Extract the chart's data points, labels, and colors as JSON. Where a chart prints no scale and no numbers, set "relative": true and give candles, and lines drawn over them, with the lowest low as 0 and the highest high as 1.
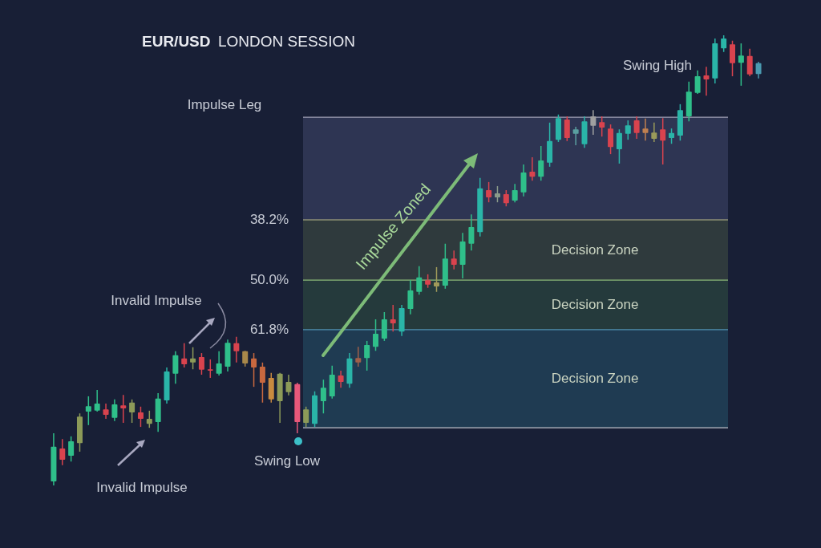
{
  "chart_data": {
    "type": "candlestick",
    "title": "EUR/USD",
    "subtitle": "LONDON SESSION",
    "relative": true,
    "categories": [
      null,
      null,
      null,
      null,
      null,
      null,
      null,
      null,
      null,
      null,
      null,
      null,
      null,
      null,
      null,
      null,
      null,
      null,
      null,
      null,
      null,
      null,
      null,
      null,
      null,
      null,
      null,
      null,
      null,
      null,
      null,
      null,
      null,
      null,
      null,
      null,
      null,
      null,
      null,
      null,
      null,
      null,
      null,
      null,
      null,
      null,
      null,
      null,
      null,
      null,
      null,
      null,
      null,
      null,
      null,
      null,
      null,
      null,
      null,
      null,
      null,
      null,
      null,
      null,
      null,
      null,
      null,
      null,
      null,
      null,
      null,
      null,
      null,
      null,
      null,
      null,
      null,
      null,
      null,
      null,
      null,
      null
    ],
    "ohlc": [
      [
        0.009,
        0.116,
        0,
        0.086
      ],
      [
        0.082,
        0.103,
        0.045,
        0.057
      ],
      [
        0.066,
        0.109,
        0.053,
        0.098
      ],
      [
        0.094,
        0.16,
        0.075,
        0.153
      ],
      [
        0.164,
        0.198,
        0.134,
        0.176
      ],
      [
        0.166,
        0.212,
        0.164,
        0.182
      ],
      [
        0.169,
        0.182,
        0.148,
        0.157
      ],
      [
        0.15,
        0.191,
        0.143,
        0.18
      ],
      [
        0.178,
        0.201,
        0.139,
        0.171
      ],
      [
        0.162,
        0.191,
        0.139,
        0.184
      ],
      [
        0.162,
        0.175,
        0.13,
        0.148
      ],
      [
        0.137,
        0.166,
        0.128,
        0.148
      ],
      [
        0.141,
        0.205,
        0.119,
        0.193
      ],
      [
        0.189,
        0.262,
        0.182,
        0.253
      ],
      [
        0.248,
        0.298,
        0.226,
        0.289
      ],
      [
        0.282,
        0.316,
        0.262,
        0.269
      ],
      [
        0.273,
        0.307,
        0.258,
        0.282
      ],
      [
        0.285,
        0.294,
        0.246,
        0.257
      ],
      [
        0.258,
        0.28,
        0.239,
        0.255
      ],
      [
        0.248,
        0.298,
        0.244,
        0.271
      ],
      [
        0.264,
        0.324,
        0.253,
        0.317
      ],
      [
        0.316,
        0.33,
        0.273,
        0.298
      ],
      [
        0.298,
        0.299,
        0.264,
        0.271
      ],
      [
        0.282,
        0.294,
        0.219,
        0.262
      ],
      [
        0.264,
        0.273,
        0.184,
        0.228
      ],
      [
        0.239,
        0.25,
        0.184,
        0.191
      ],
      [
        0.187,
        0.25,
        0.139,
        0.248
      ],
      [
        0.207,
        0.246,
        0.2,
        0.23
      ],
      [
        0.225,
        0.228,
        0.116,
        0.141
      ],
      [
        0.139,
        0.175,
        0.13,
        0.169
      ],
      [
        0.137,
        0.209,
        0.13,
        0.2
      ],
      [
        0.187,
        0.235,
        0.16,
        0.217
      ],
      [
        0.198,
        0.266,
        0.193,
        0.246
      ],
      [
        0.244,
        0.255,
        0.217,
        0.23
      ],
      [
        0.226,
        0.294,
        0.217,
        0.282
      ],
      [
        0.283,
        0.308,
        0.264,
        0.273
      ],
      [
        0.283,
        0.321,
        0.255,
        0.312
      ],
      [
        0.308,
        0.369,
        0.299,
        0.337
      ],
      [
        0.326,
        0.385,
        0.321,
        0.369
      ],
      [
        0.369,
        0.401,
        0.342,
        0.36
      ],
      [
        0.342,
        0.401,
        0.332,
        0.394
      ],
      [
        0.392,
        0.456,
        0.38,
        0.433
      ],
      [
        0.43,
        0.487,
        0.424,
        0.462
      ],
      [
        0.456,
        0.469,
        0.439,
        0.446
      ],
      [
        0.442,
        0.485,
        0.43,
        0.451
      ],
      [
        0.444,
        0.537,
        0.437,
        0.504
      ],
      [
        0.504,
        0.522,
        0.48,
        0.49
      ],
      [
        0.49,
        0.561,
        0.46,
        0.542
      ],
      [
        0.537,
        0.602,
        0.522,
        0.574
      ],
      [
        0.563,
        0.683,
        0.553,
        0.66
      ],
      [
        0.656,
        0.674,
        0.629,
        0.64
      ],
      [
        0.64,
        0.665,
        0.629,
        0.649
      ],
      [
        0.647,
        0.656,
        0.62,
        0.627
      ],
      [
        0.633,
        0.67,
        0.629,
        0.656
      ],
      [
        0.651,
        0.713,
        0.642,
        0.695
      ],
      [
        0.697,
        0.729,
        0.677,
        0.686
      ],
      [
        0.686,
        0.754,
        0.677,
        0.722
      ],
      [
        0.717,
        0.806,
        0.708,
        0.765
      ],
      [
        0.768,
        0.824,
        0.763,
        0.816
      ],
      [
        0.813,
        0.82,
        0.765,
        0.772
      ],
      [
        0.781,
        0.797,
        0.756,
        0.791
      ],
      [
        0.758,
        0.82,
        0.75,
        0.809
      ],
      [
        0.82,
        0.834,
        0.779,
        0.799
      ],
      [
        0.807,
        0.82,
        0.775,
        0.795
      ],
      [
        0.793,
        0.802,
        0.736,
        0.752
      ],
      [
        0.747,
        0.791,
        0.715,
        0.783
      ],
      [
        0.781,
        0.811,
        0.768,
        0.8
      ],
      [
        0.811,
        0.82,
        0.77,
        0.783
      ],
      [
        0.793,
        0.815,
        0.766,
        0.783
      ],
      [
        0.77,
        0.806,
        0.763,
        0.784
      ],
      [
        0.791,
        0.816,
        0.713,
        0.766
      ],
      [
        0.772,
        0.793,
        0.759,
        0.783
      ],
      [
        0.777,
        0.847,
        0.766,
        0.834
      ],
      [
        0.82,
        0.897,
        0.809,
        0.875
      ],
      [
        0.872,
        0.922,
        0.87,
        0.909
      ],
      [
        0.911,
        0.93,
        0.866,
        0.902
      ],
      [
        0.904,
        0.993,
        0.893,
        0.982
      ],
      [
        0.971,
        1,
        0.963,
        0.993
      ],
      [
        0.98,
        0.988,
        0.909,
        0.938
      ],
      [
        0.939,
        0.982,
        0.888,
        0.955
      ],
      [
        0.954,
        0.97,
        0.909,
        0.913
      ],
      [
        0.914,
        0.941,
        0.904,
        0.938
      ]
    ],
    "colors": [
      "#2fbf8a",
      "#d9434e",
      "#2fbf8a",
      "#8c9a58",
      "#2fbf8a",
      "#2fbf8a",
      "#d9434e",
      "#2fbf8a",
      "#d9434e",
      "#8c9a58",
      "#d9434e",
      "#8c9a58",
      "#2fbf8a",
      "#2ab5a8",
      "#2fbf8a",
      "#d9434e",
      "#8c9a58",
      "#d9434e",
      "#d9434e",
      "#2fbf8a",
      "#2fbf8a",
      "#d9434e",
      "#a8884a",
      "#c8683f",
      "#c8683f",
      "#c88a3f",
      "#8c9a58",
      "#8c9a58",
      "#e8587a",
      "#8c9a58",
      "#2ab5a8",
      "#2fbf8a",
      "#2fbf8a",
      "#d9434e",
      "#2ab5a8",
      "#a0604a",
      "#2fbf8a",
      "#2fbf8a",
      "#2fbf8a",
      "#d9434e",
      "#2ab5a8",
      "#2fbf8a",
      "#2fbf8a",
      "#d9434e",
      "#a09a5a",
      "#2fbf8a",
      "#d9434e",
      "#2fbf8a",
      "#2fbf8a",
      "#2ab5a8",
      "#d9434e",
      "#8a9a8a",
      "#d9434e",
      "#2fbf8a",
      "#2fbf8a",
      "#d9434e",
      "#2fbf8a",
      "#2ab5a8",
      "#2ab5a8",
      "#d9434e",
      "#5aa0a0",
      "#2ab5a8",
      "#a0a0a0",
      "#d9434e",
      "#d9434e",
      "#2ab5a8",
      "#2ab5a8",
      "#d9434e",
      "#c08050",
      "#9a9a5a",
      "#d9434e",
      "#2ab5a8",
      "#2ab5a8",
      "#2fbf8a",
      "#2fbf8a",
      "#d9434e",
      "#2ab5a8",
      "#2ab5a8",
      "#d9434e",
      "#2fbf8a",
      "#d9434e",
      "#4a9ab0"
    ],
    "bands": [
      {
        "axis": "y",
        "from": 0.59,
        "to": 0.818,
        "label": null,
        "color": "#5a5f8a"
      },
      {
        "axis": "y",
        "from": 0.456,
        "to": 0.59,
        "label": "Decision Zone",
        "color": "#5c6e4a"
      },
      {
        "axis": "y",
        "from": 0.346,
        "to": 0.456,
        "label": "Decision Zone",
        "color": "#3f6e48"
      },
      {
        "axis": "y",
        "from": 0.128,
        "to": 0.346,
        "label": "Decision Zone",
        "color": "#2f6f86"
      }
    ],
    "ref_lines": [
      {
        "axis": "y",
        "value": 0.818,
        "label": null,
        "color": "#a0a0b4"
      },
      {
        "axis": "y",
        "value": 0.59,
        "label": null,
        "color": "#b9b98a"
      },
      {
        "axis": "y",
        "value": 0.456,
        "label": null,
        "color": "#8dbb7a"
      },
      {
        "axis": "y",
        "value": 0.346,
        "label": null,
        "color": "#4f8fb0"
      },
      {
        "axis": "y",
        "value": 0.128,
        "label": null,
        "color": "#c0c0c8"
      }
    ],
    "annotations": [
      "Impulse Leg",
      "Invalid Impulse",
      "Invalid Impulse",
      "Swing Low",
      "Swing High",
      "Impulse Zoned",
      "38.2%",
      "50.0%",
      "61.8%"
    ]
  }
}
